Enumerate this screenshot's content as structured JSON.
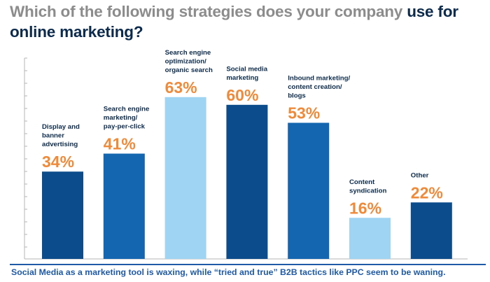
{
  "title": {
    "part1": "Which of the following strategies does your company",
    "part2": "use for",
    "part3": "online marketing?"
  },
  "chart_data": {
    "type": "bar",
    "title": "Which of the following strategies does your company use for online marketing?",
    "categories": [
      "Display and banner advertising",
      "Search engine marketing/ pay-per-click",
      "Search engine optimization/ organic search",
      "Social media marketing",
      "Inbound marketing/ content creation/ blogs",
      "Content syndication",
      "Other"
    ],
    "category_lines": [
      [
        "Display and",
        "banner",
        "advertising"
      ],
      [
        "Search engine",
        "marketing/",
        "pay-per-click"
      ],
      [
        "Search engine",
        "optimization/",
        "organic search"
      ],
      [
        "Social media",
        "marketing"
      ],
      [
        "Inbound marketing/",
        "content creation/",
        "blogs"
      ],
      [
        "Content",
        "syndication"
      ],
      [
        "Other"
      ]
    ],
    "values": [
      34,
      41,
      63,
      60,
      53,
      16,
      22
    ],
    "value_labels": [
      "34%",
      "41%",
      "63%",
      "60%",
      "53%",
      "16%",
      "22%"
    ],
    "bar_colors": [
      "#0d4c8c",
      "#1566b0",
      "#9fd4f2",
      "#0d4c8c",
      "#1566b0",
      "#9fd4f2",
      "#0d4c8c"
    ],
    "label_color": "#ef8a3a",
    "ylim": [
      0,
      100
    ],
    "grid": false,
    "xlabel": "",
    "ylabel": ""
  },
  "footer": "Social Media as a marketing tool is waxing, while “tried and true” B2B tactics like PPC seem to be waning."
}
